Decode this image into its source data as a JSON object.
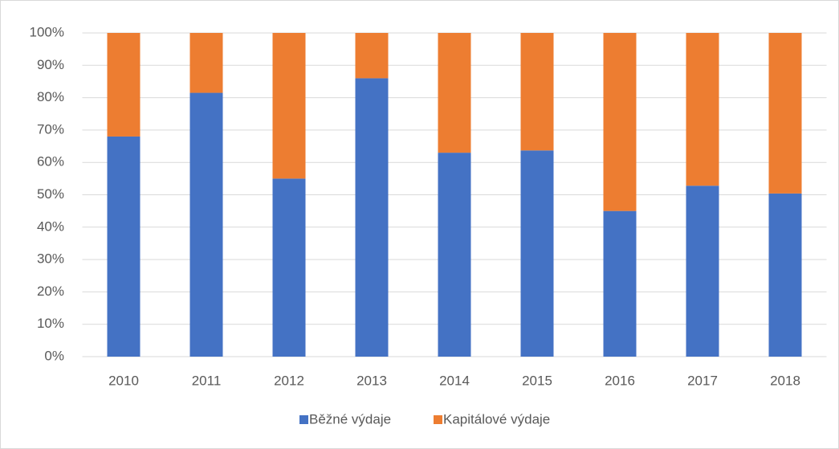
{
  "chart_data": {
    "type": "stacked_bar",
    "categories": [
      "2010",
      "2011",
      "2012",
      "2013",
      "2014",
      "2015",
      "2016",
      "2017",
      "2018"
    ],
    "series": [
      {
        "name": "Běžné výdaje",
        "color": "#4472c4",
        "values": [
          68,
          81.5,
          55,
          86,
          63,
          63.7,
          45,
          52.8,
          50.4
        ]
      },
      {
        "name": "Kapitálové výdaje",
        "color": "#ed7d31",
        "values": [
          32,
          18.5,
          45,
          14,
          37,
          36.3,
          55,
          47.2,
          49.6
        ]
      }
    ],
    "ylim": [
      0,
      100
    ],
    "yticks": [
      {
        "value": 0,
        "label": "0%"
      },
      {
        "value": 10,
        "label": "10%"
      },
      {
        "value": 20,
        "label": "20%"
      },
      {
        "value": 30,
        "label": "30%"
      },
      {
        "value": 40,
        "label": "40%"
      },
      {
        "value": 50,
        "label": "50%"
      },
      {
        "value": 60,
        "label": "60%"
      },
      {
        "value": 70,
        "label": "70%"
      },
      {
        "value": 80,
        "label": "80%"
      },
      {
        "value": 90,
        "label": "90%"
      },
      {
        "value": 100,
        "label": "100%"
      }
    ],
    "grid": true,
    "legend": "bottom"
  }
}
